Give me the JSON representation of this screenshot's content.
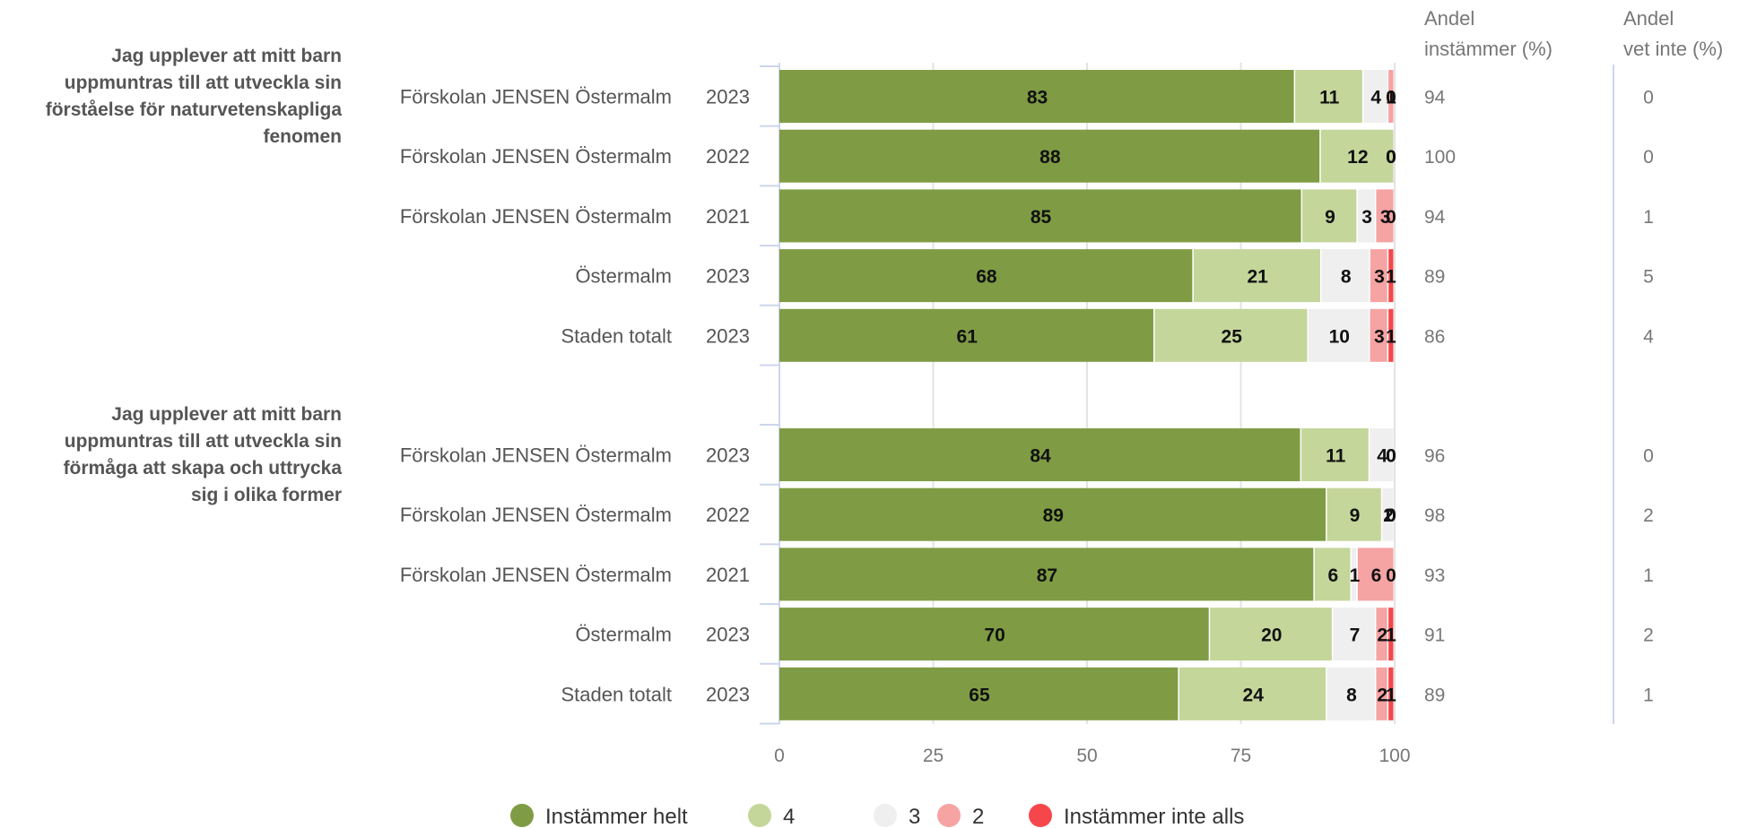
{
  "chart_data": {
    "type": "bar",
    "orientation": "horizontal",
    "stacked": true,
    "xlim": [
      0,
      100
    ],
    "xticks": [
      "0",
      "25",
      "50",
      "75",
      "100"
    ],
    "columns": {
      "agree_header": [
        "Andel",
        "instämmer (%)"
      ],
      "dontknow_header": [
        "Andel",
        "vet inte (%)"
      ]
    },
    "series": [
      {
        "name": "Instämmer helt",
        "color": "#7f9c44"
      },
      {
        "name": "4",
        "color": "#c4d69a"
      },
      {
        "name": "3",
        "color": "#efefef"
      },
      {
        "name": "2",
        "color": "#f6a3a3"
      },
      {
        "name": "Instämmer inte alls",
        "color": "#f5474b"
      }
    ],
    "groups": [
      {
        "title": [
          "Jag upplever att mitt barn",
          "uppmuntras till att utveckla sin",
          "förståelse för naturvetenskapliga",
          "fenomen"
        ],
        "rows": [
          {
            "label": "Förskolan JENSEN Östermalm",
            "year": "2023",
            "values": [
              83,
              11,
              4,
              1,
              0
            ],
            "agree": "94",
            "dontknow": "0"
          },
          {
            "label": "Förskolan JENSEN Östermalm",
            "year": "2022",
            "values": [
              88,
              12,
              0,
              0,
              0
            ],
            "agree": "100",
            "dontknow": "0"
          },
          {
            "label": "Förskolan JENSEN Östermalm",
            "year": "2021",
            "values": [
              85,
              9,
              3,
              3,
              0
            ],
            "agree": "94",
            "dontknow": "1"
          },
          {
            "label": "Östermalm",
            "year": "2023",
            "values": [
              68,
              21,
              8,
              3,
              1
            ],
            "agree": "89",
            "dontknow": "5"
          },
          {
            "label": "Staden totalt",
            "year": "2023",
            "values": [
              61,
              25,
              10,
              3,
              1
            ],
            "agree": "86",
            "dontknow": "4"
          }
        ]
      },
      {
        "title": [
          "Jag upplever att mitt barn",
          "uppmuntras till att utveckla sin",
          "förmåga att skapa och uttrycka",
          "sig i olika former"
        ],
        "rows": [
          {
            "label": "Förskolan JENSEN Östermalm",
            "year": "2023",
            "values": [
              84,
              11,
              4,
              0,
              0
            ],
            "agree": "96",
            "dontknow": "0"
          },
          {
            "label": "Förskolan JENSEN Östermalm",
            "year": "2022",
            "values": [
              89,
              9,
              2,
              0,
              0
            ],
            "agree": "98",
            "dontknow": "2"
          },
          {
            "label": "Förskolan JENSEN Östermalm",
            "year": "2021",
            "values": [
              87,
              6,
              1,
              6,
              0
            ],
            "agree": "93",
            "dontknow": "1"
          },
          {
            "label": "Östermalm",
            "year": "2023",
            "values": [
              70,
              20,
              7,
              2,
              1
            ],
            "agree": "91",
            "dontknow": "2"
          },
          {
            "label": "Staden totalt",
            "year": "2023",
            "values": [
              65,
              24,
              8,
              2,
              1
            ],
            "agree": "89",
            "dontknow": "1"
          }
        ]
      }
    ],
    "legend": {
      "position": "bottom-center"
    },
    "grid": true
  }
}
